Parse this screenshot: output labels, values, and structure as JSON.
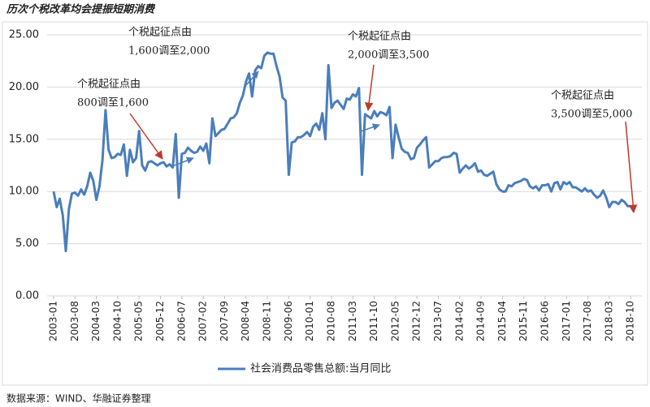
{
  "chart_data": {
    "type": "line",
    "title": "历次个税改革均会提振短期消费",
    "source": "数据来源：WIND、华融证券整理",
    "categories": [
      "2003-01",
      null,
      null,
      null,
      null,
      null,
      null,
      "2003-08",
      null,
      null,
      null,
      null,
      null,
      null,
      "2004-03",
      null,
      null,
      null,
      null,
      null,
      null,
      "2004-10",
      null,
      null,
      null,
      null,
      null,
      null,
      "2005-05",
      null,
      null,
      null,
      null,
      null,
      null,
      "2005-12",
      null,
      null,
      null,
      null,
      null,
      null,
      "2006-07",
      null,
      null,
      null,
      null,
      null,
      null,
      "2007-02",
      null,
      null,
      null,
      null,
      null,
      null,
      "2007-09",
      null,
      null,
      null,
      null,
      null,
      null,
      "2008-04",
      null,
      null,
      null,
      null,
      null,
      null,
      "2008-11",
      null,
      null,
      null,
      null,
      null,
      null,
      "2009-06",
      null,
      null,
      null,
      null,
      null,
      null,
      "2010-01",
      null,
      null,
      null,
      null,
      null,
      null,
      "2010-08",
      null,
      null,
      null,
      null,
      null,
      null,
      "2011-03",
      null,
      null,
      null,
      null,
      null,
      null,
      "2011-10",
      null,
      null,
      null,
      null,
      null,
      null,
      "2012-05",
      null,
      null,
      null,
      null,
      null,
      null,
      "2012-12",
      null,
      null,
      null,
      null,
      null,
      null,
      "2013-07",
      null,
      null,
      null,
      null,
      null,
      null,
      "2014-02",
      null,
      null,
      null,
      null,
      null,
      null,
      "2014-09",
      null,
      null,
      null,
      null,
      null,
      null,
      "2015-04",
      null,
      null,
      null,
      null,
      null,
      null,
      "2015-11",
      null,
      null,
      null,
      null,
      null,
      null,
      "2016-06",
      null,
      null,
      null,
      null,
      null,
      null,
      "2017-01",
      null,
      null,
      null,
      null,
      null,
      null,
      "2017-08",
      null,
      null,
      null,
      null,
      null,
      null,
      "2018-03",
      null,
      null,
      null,
      null,
      null,
      null,
      "2018-10",
      null
    ],
    "series": [
      {
        "name": "社会消费品零售总额:当月同比",
        "color": "#4a7ebb",
        "values": [
          10.0,
          8.5,
          9.3,
          7.7,
          4.3,
          8.3,
          9.8,
          9.9,
          9.6,
          10.2,
          9.7,
          10.5,
          11.8,
          11.0,
          9.2,
          10.5,
          13.0,
          17.8,
          14.0,
          13.2,
          13.3,
          13.6,
          13.5,
          14.5,
          11.5,
          14.0,
          12.8,
          13.2,
          15.8,
          12.5,
          12.0,
          12.8,
          12.9,
          12.7,
          12.5,
          12.7,
          12.8,
          12.4,
          12.6,
          12.3,
          15.5,
          9.4,
          13.6,
          13.7,
          14.2,
          13.9,
          13.7,
          13.8,
          14.3,
          13.9,
          14.6,
          12.7,
          17.0,
          15.3,
          15.6,
          15.9,
          16.0,
          16.5,
          17.0,
          17.1,
          17.5,
          18.5,
          19.2,
          20.5,
          21.3,
          19.1,
          21.6,
          22.0,
          21.8,
          23.0,
          23.3,
          23.2,
          23.2,
          22.0,
          21.0,
          19.0,
          18.7,
          11.6,
          14.7,
          14.8,
          15.2,
          15.2,
          15.4,
          15.7,
          15.3,
          16.2,
          16.5,
          15.9,
          17.5,
          15.0,
          22.1,
          18.0,
          18.5,
          18.7,
          18.3,
          17.9,
          18.9,
          18.8,
          19.3,
          19.1,
          19.9,
          11.6,
          17.4,
          17.2,
          17.0,
          17.7,
          17.2,
          17.6,
          17.5,
          17.3,
          18.1,
          13.2,
          16.4,
          15.2,
          14.1,
          13.8,
          13.7,
          13.1,
          13.2,
          14.2,
          14.5,
          14.9,
          15.2,
          12.3,
          12.6,
          12.9,
          12.9,
          13.2,
          13.3,
          13.3,
          13.4,
          13.7,
          13.6,
          11.8,
          12.2,
          12.5,
          12.2,
          12.4,
          12.7,
          11.9,
          12.0,
          11.6,
          11.5,
          11.7,
          11.9,
          10.7,
          10.2,
          10.0,
          10.0,
          10.6,
          10.5,
          10.8,
          10.9,
          11.0,
          11.2,
          11.1,
          10.5,
          10.3,
          10.5,
          10.1,
          10.6,
          10.6,
          10.7,
          10.0,
          10.8,
          10.9,
          10.2,
          10.9,
          10.7,
          10.9,
          10.4,
          10.4,
          10.2,
          10.0,
          10.3,
          10.0,
          10.1,
          9.7,
          9.4,
          9.6,
          10.1,
          9.4,
          8.5,
          9.0,
          9.0,
          8.8,
          9.2,
          9.0,
          8.6,
          8.6,
          8.1
        ]
      }
    ],
    "ylim": [
      0,
      25
    ],
    "yticks": [
      {
        "value": 0,
        "label": "0.00"
      },
      {
        "value": 5,
        "label": "5.00"
      },
      {
        "value": 10,
        "label": "10.00"
      },
      {
        "value": 15,
        "label": "15.00"
      },
      {
        "value": 20,
        "label": "20.00"
      },
      {
        "value": 25,
        "label": "25.00"
      }
    ],
    "grid": true,
    "legend": "bottom",
    "annotations": [
      {
        "lines": [
          "个税起征点由",
          "800调至1,600"
        ]
      },
      {
        "lines": [
          "个税起征点由",
          "1,600调至2,000"
        ]
      },
      {
        "lines": [
          "个税起征点由",
          "2,000调至3,500"
        ]
      },
      {
        "lines": [
          "个税起征点由",
          "3,500调至5,000"
        ]
      }
    ]
  }
}
